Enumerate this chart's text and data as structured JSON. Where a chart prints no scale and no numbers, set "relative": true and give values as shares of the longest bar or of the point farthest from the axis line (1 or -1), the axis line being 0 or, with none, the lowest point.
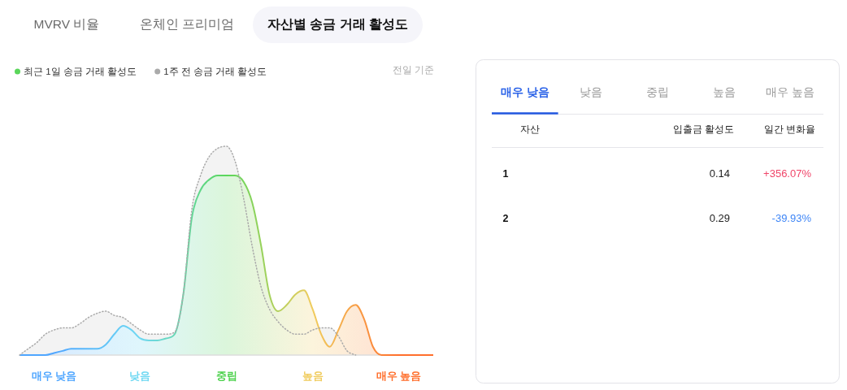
{
  "chart_data": [
    {
      "type": "area",
      "title": "자산별 송금 거래 활성도",
      "annotations": [
        "MVRV 비율",
        "온체인 프리미엄",
        "전일 기준"
      ],
      "relative": true,
      "legend": "top left",
      "categories": [
        null,
        null,
        null,
        null,
        "매우 낮음",
        null,
        null,
        null,
        null,
        null,
        null,
        null,
        null,
        null,
        "낮음",
        null,
        null,
        null,
        null,
        null,
        null,
        null,
        null,
        null,
        "중립",
        null,
        null,
        null,
        null,
        null,
        null,
        null,
        null,
        null,
        "높음",
        null,
        null,
        null,
        null,
        null,
        null,
        null,
        null,
        null,
        "매우 높음",
        null,
        null,
        null,
        null
      ],
      "series": [
        {
          "name": "최근 1일 송금 거래 활성도",
          "color": "#5ad65a",
          "values": [
            0,
            0,
            0,
            0,
            0.01,
            0.02,
            0.03,
            0.03,
            0.03,
            0.03,
            0.05,
            0.1,
            0.14,
            0.12,
            0.08,
            0.07,
            0.07,
            0.08,
            0.1,
            0.29,
            0.66,
            0.79,
            0.84,
            0.86,
            0.86,
            0.86,
            0.83,
            0.73,
            0.53,
            0.29,
            0.21,
            0.24,
            0.29,
            0.31,
            0.22,
            0.1,
            0.04,
            0.12,
            0.21,
            0.24,
            0.17,
            0.04,
            0,
            0,
            0,
            0,
            0,
            0,
            0
          ]
        },
        {
          "name": "1주 전 송금 거래 활성도",
          "color": "#aaaaaa",
          "line_style": "dotted",
          "values": [
            0,
            0.03,
            0.06,
            0.1,
            0.12,
            0.13,
            0.13,
            0.15,
            0.18,
            0.2,
            0.21,
            0.19,
            0.18,
            0.15,
            0.12,
            0.1,
            0.1,
            0.1,
            0.11,
            0.29,
            0.7,
            0.86,
            0.95,
            0.99,
            1,
            0.93,
            0.75,
            0.52,
            0.33,
            0.22,
            0.16,
            0.12,
            0.1,
            0.1,
            0.12,
            0.13,
            0.13,
            0.09,
            0.02,
            0,
            null,
            null,
            null,
            null,
            null,
            null,
            null,
            null,
            null
          ]
        }
      ]
    },
    {
      "type": "other",
      "categories": [
        "매우 낮음",
        "낮음",
        "중립",
        "높음",
        "매우 높음"
      ],
      "annotations": [
        "자산",
        "입출금 활성도",
        "일간 변화율",
        "1",
        "0.14",
        "+356.07%",
        "2",
        "0.29",
        "-39.93%"
      ]
    }
  ]
}
